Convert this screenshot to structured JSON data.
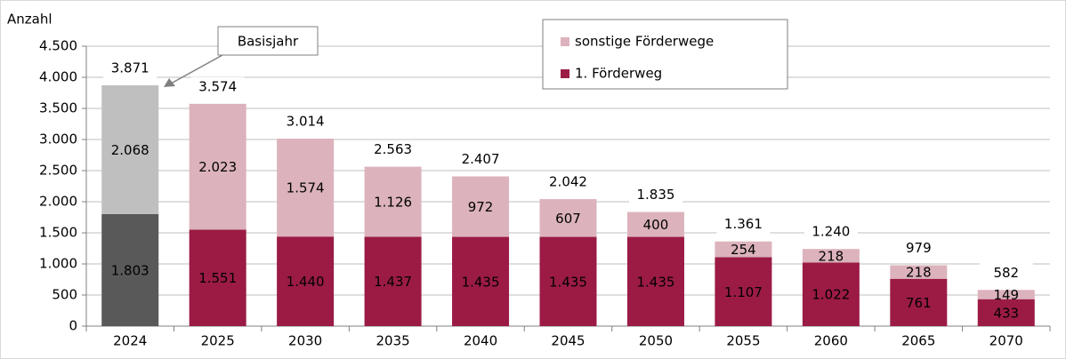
{
  "chart_data": {
    "type": "stacked_bar",
    "y_axis_label": "Anzahl",
    "categories": [
      "2024",
      "2025",
      "2030",
      "2035",
      "2040",
      "2045",
      "2050",
      "2055",
      "2060",
      "2065",
      "2070"
    ],
    "series": [
      {
        "name": "1. Förderweg",
        "color": "#9b1b45",
        "colors": [
          "#595959",
          "#9b1b45",
          "#9b1b45",
          "#9b1b45",
          "#9b1b45",
          "#9b1b45",
          "#9b1b45",
          "#9b1b45",
          "#9b1b45",
          "#9b1b45",
          "#9b1b45"
        ],
        "values": [
          1803,
          1551,
          1440,
          1437,
          1435,
          1435,
          1435,
          1107,
          1022,
          761,
          433
        ],
        "value_labels": [
          "1.803",
          "1.551",
          "1.440",
          "1.437",
          "1.435",
          "1.435",
          "1.435",
          "1.107",
          "1.022",
          "761",
          "433"
        ]
      },
      {
        "name": "sonstige Förderwege",
        "color": "#dcb3bc",
        "colors": [
          "#bfbfbf",
          "#dcb3bc",
          "#dcb3bc",
          "#dcb3bc",
          "#dcb3bc",
          "#dcb3bc",
          "#dcb3bc",
          "#dcb3bc",
          "#dcb3bc",
          "#dcb3bc",
          "#dcb3bc"
        ],
        "values": [
          2068,
          2023,
          1574,
          1126,
          972,
          607,
          400,
          254,
          218,
          218,
          149
        ],
        "value_labels": [
          "2.068",
          "2.023",
          "1.574",
          "1.126",
          "972",
          "607",
          "400",
          "254",
          "218",
          "218",
          "149"
        ]
      }
    ],
    "totals": {
      "values": [
        3871,
        3574,
        3014,
        2563,
        2407,
        2042,
        1835,
        1361,
        1240,
        979,
        582
      ],
      "value_labels": [
        "3.871",
        "3.574",
        "3.014",
        "2.563",
        "2.407",
        "2.042",
        "1.835",
        "1.361",
        "1.240",
        "979",
        "582"
      ]
    },
    "annotations": [
      {
        "text": "Basisjahr"
      }
    ],
    "ylim": [
      0,
      4500
    ],
    "yticks": [
      0,
      500,
      {
        "value": 1000,
        "label": "1.000"
      },
      {
        "value": 1500,
        "label": "1.500"
      },
      {
        "value": 2000,
        "label": "2.000"
      },
      {
        "value": 2500,
        "label": "2.500"
      },
      {
        "value": 3000,
        "label": "3.000"
      },
      {
        "value": 3500,
        "label": "3.500"
      },
      {
        "value": 4000,
        "label": "4.000"
      },
      {
        "value": 4500,
        "label": "4.500"
      }
    ],
    "grid": true
  }
}
